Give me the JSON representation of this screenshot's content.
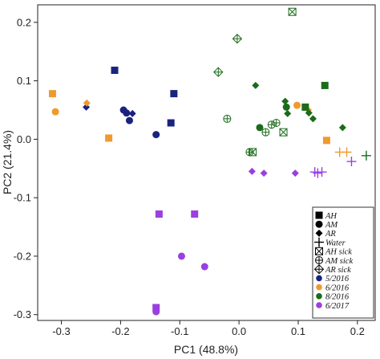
{
  "chart_data": {
    "type": "scatter",
    "title": "",
    "xlabel": "PC1 (48.8%)",
    "ylabel": "PC2 (21.4%)",
    "xlim": [
      -0.34,
      0.23
    ],
    "ylim": [
      -0.31,
      0.23
    ],
    "xticks": [
      -0.3,
      -0.2,
      -0.1,
      0.0,
      0.1,
      0.2
    ],
    "xtick_labels": [
      "-0.3",
      "-0.2",
      "-0.1",
      "0.0",
      "0.1",
      "0.2"
    ],
    "yticks": [
      -0.3,
      -0.2,
      -0.1,
      0.0,
      0.1,
      0.2
    ],
    "ytick_labels": [
      "-0.3",
      "-0.2",
      "-0.1",
      "0.0",
      "0.1",
      "0.2"
    ],
    "grid": false,
    "legend_position": "bottom-right",
    "colors": {
      "5/2016": "#1a237e",
      "6/2016": "#ef9a2e",
      "8/2016": "#1b6b1b",
      "6/2017": "#9b3fe0"
    },
    "legend": {
      "shapes": [
        {
          "label": "AH",
          "marker": "square"
        },
        {
          "label": "AM",
          "marker": "circle"
        },
        {
          "label": "AR",
          "marker": "diamond"
        },
        {
          "label": "Water",
          "marker": "plus"
        },
        {
          "label": "AH sick",
          "marker": "square-x"
        },
        {
          "label": "AM sick",
          "marker": "circle-plus"
        },
        {
          "label": "AR sick",
          "marker": "diamond-plus"
        }
      ],
      "dates": [
        {
          "label": "5/2016",
          "color": "#1a237e"
        },
        {
          "label": "6/2016",
          "color": "#ef9a2e"
        },
        {
          "label": "8/2016",
          "color": "#1b6b1b"
        },
        {
          "label": "6/2017",
          "color": "#9b3fe0"
        }
      ]
    },
    "points": [
      {
        "x": -0.21,
        "y": 0.118,
        "group": "AH",
        "date": "5/2016"
      },
      {
        "x": -0.11,
        "y": 0.078,
        "group": "AH",
        "date": "5/2016"
      },
      {
        "x": -0.115,
        "y": 0.028,
        "group": "AH",
        "date": "5/2016"
      },
      {
        "x": -0.195,
        "y": 0.05,
        "group": "AM",
        "date": "5/2016"
      },
      {
        "x": -0.19,
        "y": 0.045,
        "group": "AM",
        "date": "5/2016"
      },
      {
        "x": -0.185,
        "y": 0.032,
        "group": "AM",
        "date": "5/2016"
      },
      {
        "x": -0.14,
        "y": 0.008,
        "group": "AM",
        "date": "5/2016"
      },
      {
        "x": -0.258,
        "y": 0.055,
        "group": "AR",
        "date": "5/2016"
      },
      {
        "x": -0.18,
        "y": 0.044,
        "group": "AR",
        "date": "5/2016"
      },
      {
        "x": -0.315,
        "y": 0.078,
        "group": "AH",
        "date": "6/2016"
      },
      {
        "x": -0.22,
        "y": 0.002,
        "group": "AH",
        "date": "6/2016"
      },
      {
        "x": 0.148,
        "y": -0.002,
        "group": "AH",
        "date": "6/2016"
      },
      {
        "x": -0.31,
        "y": 0.047,
        "group": "AM",
        "date": "6/2016"
      },
      {
        "x": 0.098,
        "y": 0.058,
        "group": "AM",
        "date": "6/2016"
      },
      {
        "x": -0.257,
        "y": 0.062,
        "group": "AR",
        "date": "6/2016"
      },
      {
        "x": 0.117,
        "y": 0.05,
        "group": "AR",
        "date": "6/2016"
      },
      {
        "x": 0.17,
        "y": -0.022,
        "group": "Water",
        "date": "6/2016"
      },
      {
        "x": 0.182,
        "y": -0.022,
        "group": "Water",
        "date": "6/2016"
      },
      {
        "x": 0.145,
        "y": 0.092,
        "group": "AH",
        "date": "8/2016"
      },
      {
        "x": 0.112,
        "y": 0.055,
        "group": "AH",
        "date": "8/2016"
      },
      {
        "x": 0.035,
        "y": 0.02,
        "group": "AM",
        "date": "8/2016"
      },
      {
        "x": 0.08,
        "y": 0.055,
        "group": "AM",
        "date": "8/2016"
      },
      {
        "x": 0.028,
        "y": 0.092,
        "group": "AR",
        "date": "8/2016"
      },
      {
        "x": 0.078,
        "y": 0.065,
        "group": "AR",
        "date": "8/2016"
      },
      {
        "x": 0.082,
        "y": 0.044,
        "group": "AR",
        "date": "8/2016"
      },
      {
        "x": 0.118,
        "y": 0.045,
        "group": "AR",
        "date": "8/2016"
      },
      {
        "x": 0.125,
        "y": 0.035,
        "group": "AR",
        "date": "8/2016"
      },
      {
        "x": 0.175,
        "y": 0.02,
        "group": "AR",
        "date": "8/2016"
      },
      {
        "x": 0.215,
        "y": -0.028,
        "group": "Water",
        "date": "8/2016"
      },
      {
        "x": -0.135,
        "y": -0.128,
        "group": "AH",
        "date": "6/2017"
      },
      {
        "x": -0.075,
        "y": -0.128,
        "group": "AH",
        "date": "6/2017"
      },
      {
        "x": -0.14,
        "y": -0.288,
        "group": "AH",
        "date": "6/2017"
      },
      {
        "x": -0.097,
        "y": -0.2,
        "group": "AM",
        "date": "6/2017"
      },
      {
        "x": -0.058,
        "y": -0.218,
        "group": "AM",
        "date": "6/2017"
      },
      {
        "x": -0.14,
        "y": -0.295,
        "group": "AM",
        "date": "6/2017"
      },
      {
        "x": 0.022,
        "y": -0.055,
        "group": "AR",
        "date": "6/2017"
      },
      {
        "x": 0.042,
        "y": -0.058,
        "group": "AR",
        "date": "6/2017"
      },
      {
        "x": 0.095,
        "y": -0.058,
        "group": "AR",
        "date": "6/2017"
      },
      {
        "x": 0.128,
        "y": -0.056,
        "group": "Water",
        "date": "6/2017"
      },
      {
        "x": 0.133,
        "y": -0.058,
        "group": "Water",
        "date": "6/2017"
      },
      {
        "x": 0.14,
        "y": -0.056,
        "group": "Water",
        "date": "6/2017"
      },
      {
        "x": 0.19,
        "y": -0.038,
        "group": "Water",
        "date": "6/2017"
      },
      {
        "x": 0.09,
        "y": 0.218,
        "group": "AH sick",
        "date": "8/2016"
      },
      {
        "x": 0.075,
        "y": 0.012,
        "group": "AH sick",
        "date": "8/2016"
      },
      {
        "x": 0.023,
        "y": -0.022,
        "group": "AH sick",
        "date": "8/2016"
      },
      {
        "x": -0.02,
        "y": 0.035,
        "group": "AM sick",
        "date": "8/2016"
      },
      {
        "x": 0.055,
        "y": 0.025,
        "group": "AM sick",
        "date": "8/2016"
      },
      {
        "x": 0.063,
        "y": 0.028,
        "group": "AM sick",
        "date": "8/2016"
      },
      {
        "x": 0.045,
        "y": 0.012,
        "group": "AM sick",
        "date": "8/2016"
      },
      {
        "x": 0.018,
        "y": -0.022,
        "group": "AM sick",
        "date": "8/2016"
      },
      {
        "x": -0.003,
        "y": 0.172,
        "group": "AR sick",
        "date": "8/2016"
      },
      {
        "x": -0.035,
        "y": 0.115,
        "group": "AR sick",
        "date": "8/2016"
      }
    ]
  }
}
